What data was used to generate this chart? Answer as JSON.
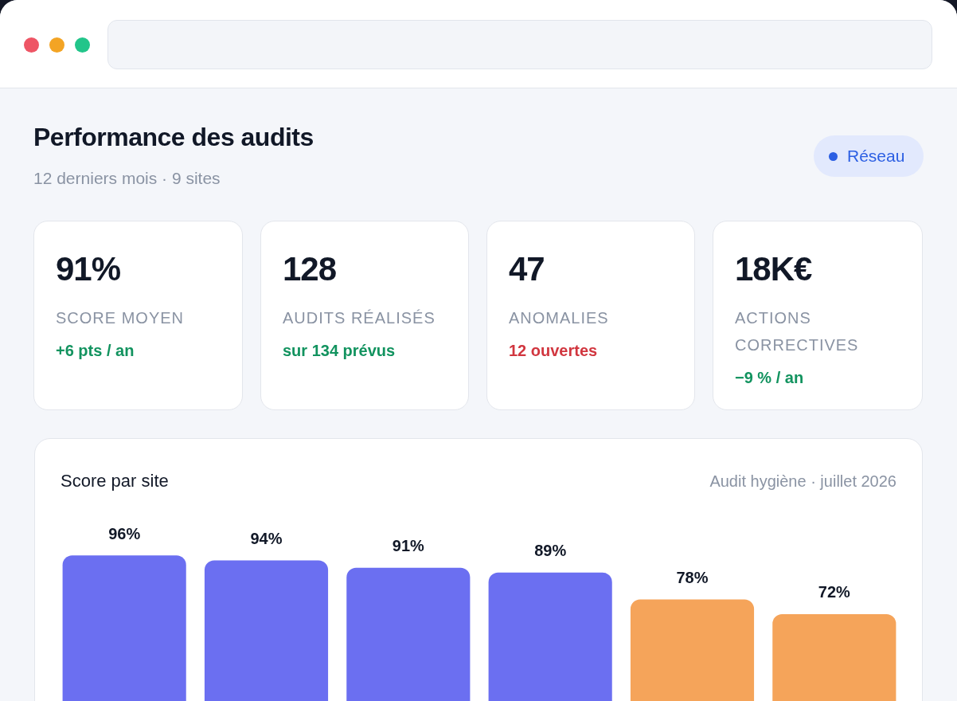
{
  "chart_data": [
    {
      "type": "other",
      "title": "Performance des audits",
      "subtitle": "12 derniers mois · 9 sites",
      "annotations": [
        "Réseau",
        "91%",
        "SCORE MOYEN",
        "+6 pts / an",
        "128",
        "AUDITS RÉALISÉS",
        "sur 134 prévus",
        "47",
        "ANOMALIES",
        "12 ouvertes",
        "18K€",
        "ACTIONS CORRECTIVES",
        "−9 % / an"
      ]
    },
    {
      "type": "bar",
      "title": "Score par site",
      "subtitle": "Audit hygiène · juillet 2026",
      "categories": [
        null,
        null,
        null,
        null,
        null,
        null
      ],
      "values": [
        96,
        94,
        91,
        89,
        78,
        72
      ],
      "colors": [
        "#6b6ff1",
        "#6b6ff1",
        "#6b6ff1",
        "#6b6ff1",
        "#f5a45a",
        "#f5a45a"
      ],
      "value_labels": [
        "96%",
        "94%",
        "91%",
        "89%",
        "78%",
        "72%"
      ]
    }
  ]
}
